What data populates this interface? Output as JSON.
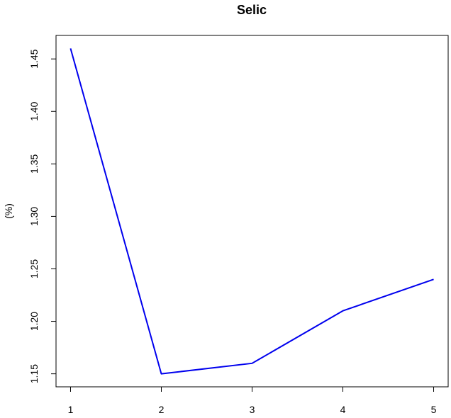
{
  "chart_data": {
    "type": "line",
    "title": "Selic",
    "xlabel": "",
    "ylabel": "(%)",
    "x": [
      1,
      2,
      3,
      4,
      5
    ],
    "series": [
      {
        "values": [
          1.46,
          1.15,
          1.16,
          1.21,
          1.24
        ],
        "color": "#0000ee"
      }
    ],
    "xlim": [
      0.84,
      5.16
    ],
    "ylim": [
      1.1376,
      1.4724
    ],
    "x_ticks": [
      1,
      2,
      3,
      4,
      5
    ],
    "x_tick_labels": [
      "1",
      "2",
      "3",
      "4",
      "5"
    ],
    "y_ticks": [
      1.15,
      1.2,
      1.25,
      1.3,
      1.35,
      1.4,
      1.45
    ],
    "y_tick_labels": [
      "1.15",
      "1.20",
      "1.25",
      "1.30",
      "1.35",
      "1.40",
      "1.45"
    ],
    "grid": false,
    "legend": "none"
  }
}
